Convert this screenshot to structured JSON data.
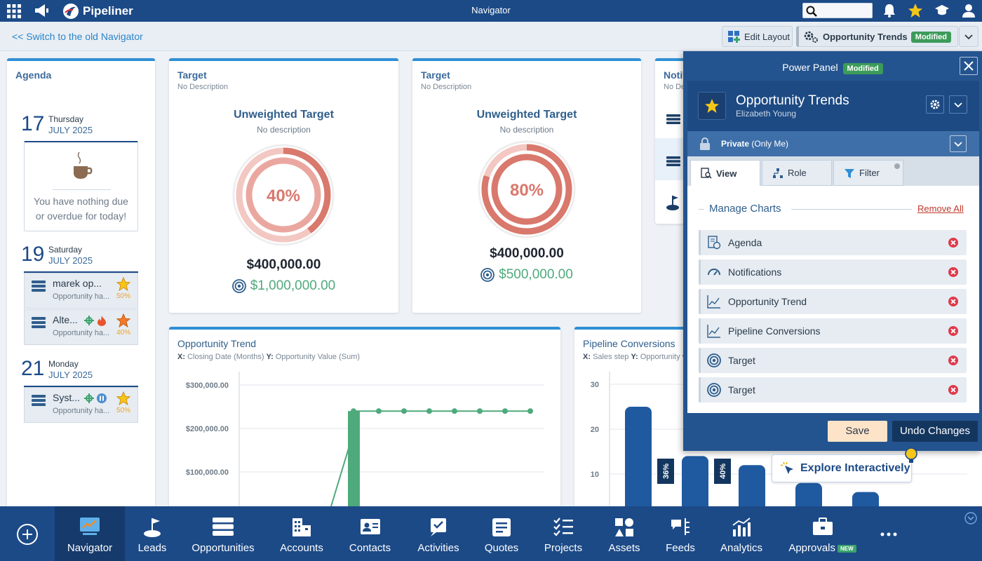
{
  "topbar": {
    "brand": "Pipeliner",
    "title": "Navigator",
    "search_placeholder": ""
  },
  "subbar": {
    "switch_link": "<< Switch to the old Navigator",
    "edit_layout": "Edit Layout",
    "trend_name": "Opportunity Trends",
    "modified": "Modified"
  },
  "agenda": {
    "title": "Agenda",
    "days": [
      {
        "num": "17",
        "name": "Thursday",
        "month": "JULY 2025"
      },
      {
        "num": "19",
        "name": "Saturday",
        "month": "JULY 2025"
      },
      {
        "num": "21",
        "name": "Monday",
        "month": "JULY 2025"
      }
    ],
    "empty_msg_1": "You have nothing due",
    "empty_msg_2": "or overdue for today!",
    "items": [
      {
        "name": "marek op...",
        "sub": "Opportunity ha...",
        "pct": "50%"
      },
      {
        "name": "Alte...",
        "sub": "Opportunity ha...",
        "pct": "40%"
      },
      {
        "name": "Syst...",
        "sub": "Opportunity ha...",
        "pct": "50%"
      }
    ]
  },
  "targets": [
    {
      "title": "Target",
      "sub": "No Description",
      "name": "Unweighted Target",
      "desc": "No description",
      "pct_label": "40%",
      "pct": 40,
      "value": "$400,000.00",
      "goal": "$1,000,000.00"
    },
    {
      "title": "Target",
      "sub": "No Description",
      "name": "Unweighted Target",
      "desc": "No description",
      "pct_label": "80%",
      "pct": 80,
      "value": "$400,000.00",
      "goal": "$500,000.00"
    }
  ],
  "notifications": {
    "title": "Notifi",
    "sub": "No De"
  },
  "trend_chart": {
    "title": "Opportunity Trend",
    "x_prefix": "X:",
    "x_label": "Closing Date (Months)",
    "y_prefix": "Y:",
    "y_label": "Opportunity Value (Sum)"
  },
  "pipeline_chart": {
    "title": "Pipeline Conversions",
    "x_prefix": "X:",
    "x_label": "Sales step",
    "y_prefix": "Y:",
    "y_label": "Opportunity v"
  },
  "chart_data": [
    {
      "type": "line",
      "title": "Opportunity Trend",
      "xlabel": "Closing Date (Months)",
      "ylabel": "Opportunity Value (Sum)",
      "y_ticks": [
        "$300,000.00",
        "$200,000.00",
        "$100,000.00"
      ],
      "ylim": [
        0,
        300000
      ],
      "bar_values": [
        240000
      ],
      "line_values": [
        240000,
        240000,
        240000,
        240000,
        240000,
        240000,
        240000,
        240000
      ]
    },
    {
      "type": "bar",
      "title": "Pipeline Conversions",
      "xlabel": "Sales step",
      "y_ticks": [
        "30",
        "20",
        "10"
      ],
      "ylim": [
        0,
        30
      ],
      "values": [
        25,
        14,
        12,
        8,
        6
      ],
      "conversion_labels": [
        "36%",
        "40%"
      ]
    }
  ],
  "power_panel": {
    "title": "Power Panel",
    "modified": "Modified",
    "name": "Opportunity Trends",
    "owner": "Elizabeth Young",
    "privacy_bold": "Private",
    "privacy_rest": " (Only Me)",
    "tabs": [
      "View",
      "Role",
      "Filter"
    ],
    "manage_title": "Manage Charts",
    "remove_all": "Remove All",
    "charts": [
      "Agenda",
      "Notifications",
      "Opportunity Trend",
      "Pipeline Conversions",
      "Target",
      "Target"
    ],
    "save": "Save",
    "undo": "Undo Changes"
  },
  "explore": "Explore Interactively",
  "bottom_nav": [
    "Navigator",
    "Leads",
    "Opportunities",
    "Accounts",
    "Contacts",
    "Activities",
    "Quotes",
    "Projects",
    "Assets",
    "Feeds",
    "Analytics",
    "Approvals"
  ],
  "new_badge": "NEW",
  "colors": {
    "brand": "#1c4a87",
    "accent": "#2f8fd6",
    "goal_green": "#4eaa7b",
    "ring": "#d9786c"
  }
}
